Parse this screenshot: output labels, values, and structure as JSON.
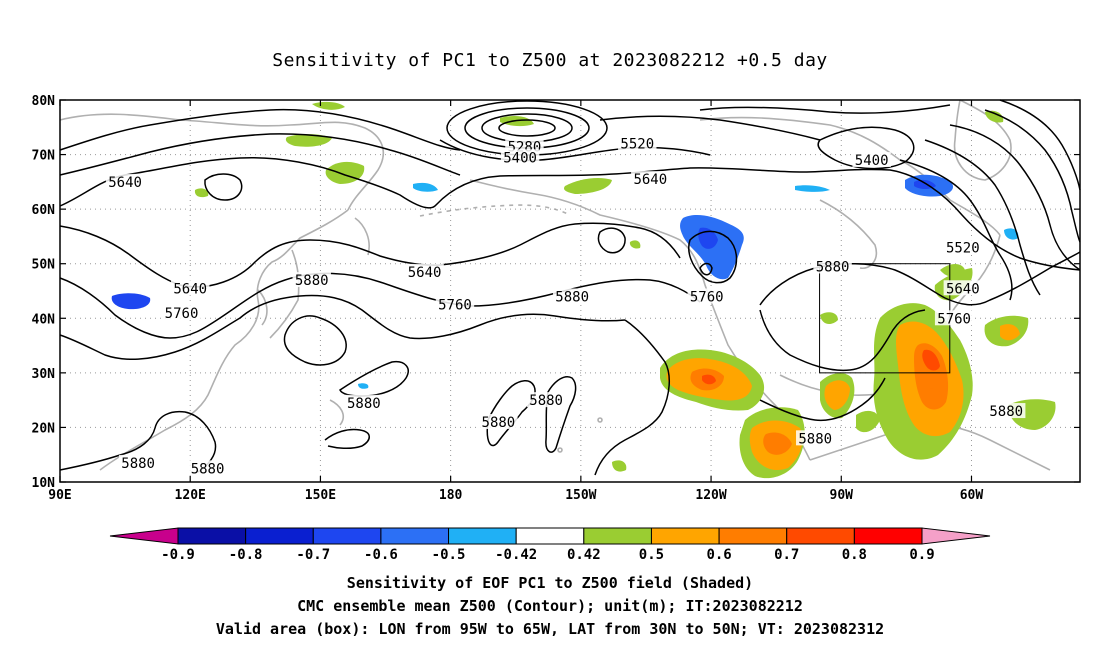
{
  "title": "Sensitivity of PC1 to Z500 at 2023082212 +0.5 day",
  "captions": [
    "Sensitivity of EOF PC1 to Z500 field (Shaded)",
    "CMC ensemble mean Z500 (Contour); unit(m); IT:2023082212",
    "Valid area (box): LON from 95W to 65W, LAT from 30N to 50N; VT: 2023082312"
  ],
  "map": {
    "lon_range": [
      90,
      325
    ],
    "lat_range": [
      10,
      80
    ],
    "lon_ticks": [
      {
        "value": 90,
        "label": "90E"
      },
      {
        "value": 120,
        "label": "120E"
      },
      {
        "value": 150,
        "label": "150E"
      },
      {
        "value": 180,
        "label": "180"
      },
      {
        "value": 210,
        "label": "150W"
      },
      {
        "value": 240,
        "label": "120W"
      },
      {
        "value": 270,
        "label": "90W"
      },
      {
        "value": 300,
        "label": "60W"
      }
    ],
    "lat_ticks": [
      {
        "value": 10,
        "label": "10N"
      },
      {
        "value": 20,
        "label": "20N"
      },
      {
        "value": 30,
        "label": "30N"
      },
      {
        "value": 40,
        "label": "40N"
      },
      {
        "value": 50,
        "label": "50N"
      },
      {
        "value": 60,
        "label": "60N"
      },
      {
        "value": 70,
        "label": "70N"
      },
      {
        "value": 80,
        "label": "80N"
      }
    ],
    "valid_box": {
      "lon_min": 265,
      "lon_max": 295,
      "lat_min": 30,
      "lat_max": 50
    },
    "contour_labels": [
      {
        "text": "5640",
        "lon": 105,
        "lat": 65
      },
      {
        "text": "5640",
        "lon": 120,
        "lat": 45.5
      },
      {
        "text": "5760",
        "lon": 118,
        "lat": 41
      },
      {
        "text": "5880",
        "lon": 148,
        "lat": 47
      },
      {
        "text": "5640",
        "lon": 174,
        "lat": 48.5
      },
      {
        "text": "5760",
        "lon": 181,
        "lat": 42.5
      },
      {
        "text": "5880",
        "lon": 208,
        "lat": 44
      },
      {
        "text": "5880",
        "lon": 160,
        "lat": 24.5
      },
      {
        "text": "5880",
        "lon": 191,
        "lat": 21
      },
      {
        "text": "5880",
        "lon": 202,
        "lat": 25
      },
      {
        "text": "5880",
        "lon": 108,
        "lat": 13.5
      },
      {
        "text": "5880",
        "lon": 124,
        "lat": 12.5
      },
      {
        "text": "5280",
        "lon": 197,
        "lat": 71.5
      },
      {
        "text": "5400",
        "lon": 196,
        "lat": 69.5
      },
      {
        "text": "5520",
        "lon": 223,
        "lat": 72
      },
      {
        "text": "5640",
        "lon": 226,
        "lat": 65.5
      },
      {
        "text": "5400",
        "lon": 277,
        "lat": 69
      },
      {
        "text": "5520",
        "lon": 298,
        "lat": 53
      },
      {
        "text": "5880",
        "lon": 268,
        "lat": 49.5
      },
      {
        "text": "5760",
        "lon": 239,
        "lat": 44
      },
      {
        "text": "5640",
        "lon": 298,
        "lat": 45.5
      },
      {
        "text": "5760",
        "lon": 296,
        "lat": 40
      },
      {
        "text": "5880",
        "lon": 308,
        "lat": 23
      },
      {
        "text": "5880",
        "lon": 264,
        "lat": 18
      }
    ]
  },
  "colorbar": {
    "labels": [
      "-0.9",
      "-0.8",
      "-0.7",
      "-0.6",
      "-0.5",
      "-0.42",
      "0.42",
      "0.5",
      "0.6",
      "0.7",
      "0.8",
      "0.9"
    ],
    "colors": [
      "#0a0fa6",
      "#0a1fd0",
      "#1e46f0",
      "#2c70f5",
      "#20b0f5",
      "#ffffff",
      "#9acd32",
      "#ffa500",
      "#ff7d00",
      "#ff4a00",
      "#ff0000"
    ],
    "low_end_color": "#c8008c",
    "high_end_color": "#f5a0c8"
  }
}
